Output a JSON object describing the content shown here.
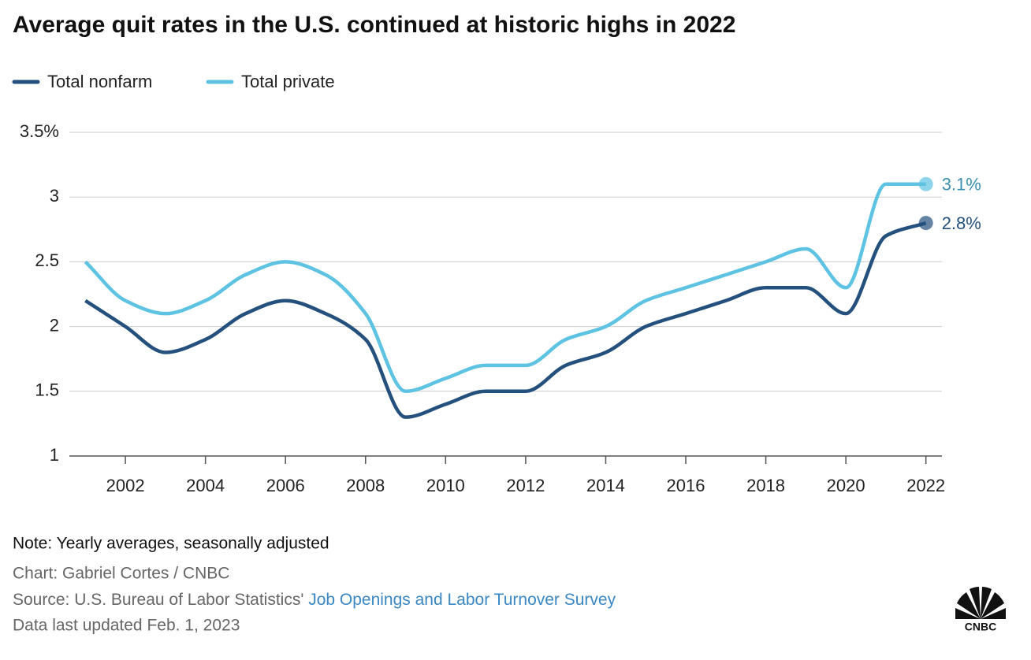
{
  "chart_data": {
    "type": "line",
    "title": "Average quit rates in the U.S. continued at historic highs in 2022",
    "x": [
      2001,
      2002,
      2003,
      2004,
      2005,
      2006,
      2007,
      2008,
      2009,
      2010,
      2011,
      2012,
      2013,
      2014,
      2015,
      2016,
      2017,
      2018,
      2019,
      2020,
      2021,
      2022
    ],
    "series": [
      {
        "name": "Total nonfarm",
        "color": "#24507e",
        "values": [
          2.2,
          2.0,
          1.8,
          1.9,
          2.1,
          2.2,
          2.1,
          1.9,
          1.3,
          1.4,
          1.5,
          1.5,
          1.7,
          1.8,
          2.0,
          2.1,
          2.2,
          2.3,
          2.3,
          2.1,
          2.7,
          2.8
        ],
        "value_labels": [
          null,
          null,
          null,
          null,
          null,
          null,
          null,
          null,
          null,
          null,
          null,
          null,
          null,
          null,
          null,
          null,
          null,
          null,
          null,
          null,
          null,
          "2.8%"
        ]
      },
      {
        "name": "Total private",
        "color": "#5ec3e3",
        "values": [
          2.5,
          2.2,
          2.1,
          2.2,
          2.4,
          2.5,
          2.4,
          2.1,
          1.5,
          1.6,
          1.7,
          1.7,
          1.9,
          2.0,
          2.2,
          2.3,
          2.4,
          2.5,
          2.6,
          2.3,
          3.1,
          3.1
        ],
        "value_labels": [
          null,
          null,
          null,
          null,
          null,
          null,
          null,
          null,
          null,
          null,
          null,
          null,
          null,
          null,
          null,
          null,
          null,
          null,
          null,
          null,
          null,
          "3.1%"
        ]
      }
    ],
    "xlim": [
      2000.6,
      2022.4
    ],
    "xticks": [
      2002,
      2004,
      2006,
      2008,
      2010,
      2012,
      2014,
      2016,
      2018,
      2020,
      2022
    ],
    "ylim": [
      1,
      3.5
    ],
    "yticks": [
      1,
      1.5,
      2,
      2.5,
      3,
      {
        "value": 3.5,
        "label": "3.5%"
      }
    ],
    "grid": true,
    "legend": "top-left"
  },
  "footer": {
    "note": "Note: Yearly averages, seasonally adjusted",
    "credit": "Chart: Gabriel Cortes / CNBC",
    "source_prefix": "Source: U.S. Bureau of Labor Statistics'",
    "source_link": "Job Openings and Labor Turnover Survey",
    "updated": "Data last updated Feb. 1, 2023",
    "logo": "CNBC"
  }
}
